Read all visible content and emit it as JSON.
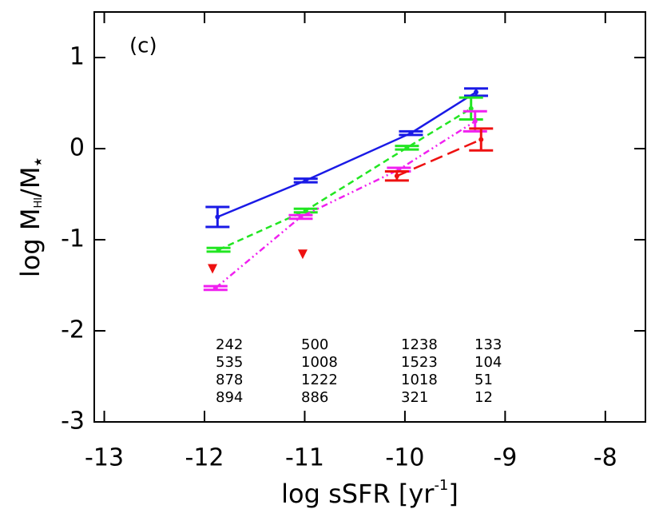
{
  "chart_data": {
    "type": "errorbar",
    "panel_label": "(c)",
    "x_label": {
      "main": "log sSFR [yr",
      "sup": "-1",
      "end": "]"
    },
    "y_label": {
      "main": "log M",
      "sub": "HI",
      "mid": "/M",
      "sub2": "★"
    },
    "xlim": [
      -13.1,
      -7.6
    ],
    "xticks": [
      -13,
      -12,
      -11,
      -10,
      -9,
      -8
    ],
    "ylim": [
      -3,
      1.5
    ],
    "yticks": [
      -3,
      -2,
      -1,
      0,
      1
    ],
    "series": [
      {
        "color": "#1a1ae6",
        "line_style": "solid",
        "x": [
          -11.87,
          -10.99,
          -9.94,
          -9.29
        ],
        "values": [
          -0.75,
          -0.35,
          0.17,
          0.62
        ],
        "errors": [
          0.11,
          0.02,
          0.02,
          0.04
        ],
        "counts": [
          242,
          500,
          1238,
          133
        ]
      },
      {
        "color": "#22e622",
        "line_style": "dashed",
        "x": [
          -11.86,
          -10.99,
          -9.98,
          -9.34
        ],
        "values": [
          -1.11,
          -0.68,
          0.01,
          0.44
        ],
        "errors": [
          0.02,
          0.02,
          0.02,
          0.12
        ],
        "counts": [
          535,
          1008,
          1523,
          104
        ]
      },
      {
        "color": "#f020f0",
        "line_style": "dash-dot-dot",
        "x": [
          -11.89,
          -11.04,
          -10.06,
          -9.3
        ],
        "values": [
          -1.53,
          -0.75,
          -0.23,
          0.3
        ],
        "errors": [
          0.02,
          0.02,
          0.02,
          0.11
        ],
        "counts": [
          878,
          1222,
          1018,
          51
        ]
      },
      {
        "color": "#ee1111",
        "line_style": "long-dashed",
        "x": [
          -11.92,
          -11.02,
          -10.08,
          -9.24
        ],
        "values": [
          null,
          null,
          -0.3,
          0.1
        ],
        "errors": [
          null,
          null,
          0.05,
          0.12
        ],
        "upper_limits": [
          -1.32,
          -1.16,
          null,
          null
        ],
        "counts": [
          894,
          886,
          321,
          12
        ]
      }
    ]
  }
}
